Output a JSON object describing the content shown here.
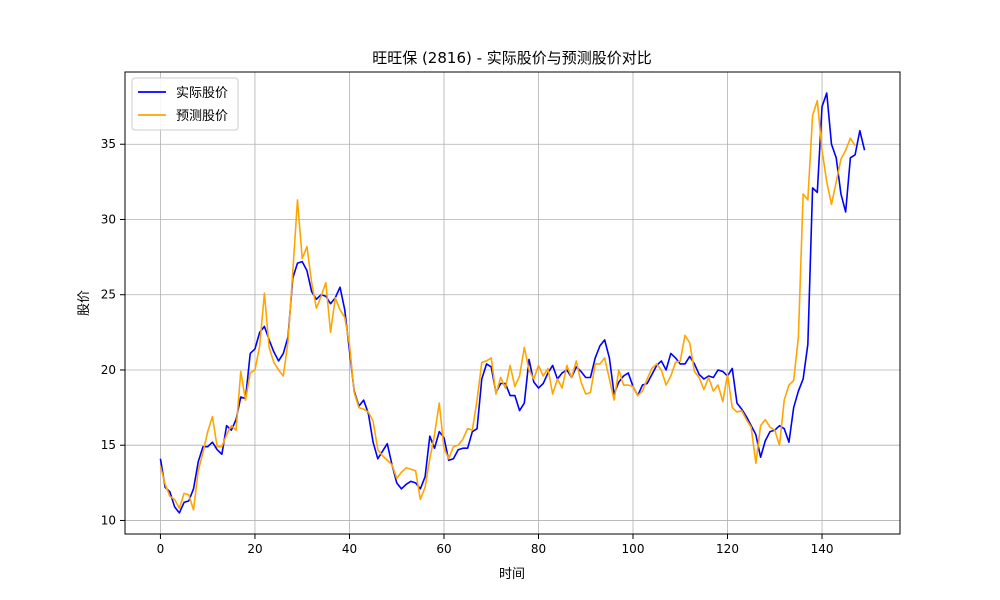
{
  "chart_data": {
    "type": "line",
    "title": "旺旺保 (2816) - 实际股价与预测股价对比",
    "xlabel": "时间",
    "ylabel": "股价",
    "xlim": [
      -7.5,
      156.5
    ],
    "ylim": [
      9.1,
      39.8
    ],
    "xticks": [
      0,
      20,
      40,
      60,
      80,
      100,
      120,
      140
    ],
    "yticks": [
      10,
      15,
      20,
      25,
      30,
      35
    ],
    "grid": true,
    "legend_position": "top-left",
    "series": [
      {
        "name": "实际股价",
        "color": "#0000ff",
        "values": [
          14.1,
          12.2,
          11.9,
          10.9,
          10.5,
          11.2,
          11.3,
          12.1,
          13.9,
          14.9,
          14.9,
          15.2,
          14.7,
          14.4,
          16.3,
          16.0,
          16.7,
          18.2,
          18.1,
          21.1,
          21.4,
          22.5,
          22.9,
          22.0,
          21.2,
          20.6,
          21.1,
          22.2,
          26.1,
          27.1,
          27.2,
          26.6,
          25.2,
          24.7,
          25.0,
          24.9,
          24.4,
          24.8,
          25.5,
          24.0,
          21.3,
          18.6,
          17.6,
          18.0,
          17.1,
          15.2,
          14.1,
          14.6,
          15.1,
          13.7,
          12.5,
          12.1,
          12.4,
          12.6,
          12.5,
          12.1,
          12.9,
          15.6,
          14.8,
          15.9,
          15.5,
          14.0,
          14.1,
          14.7,
          14.8,
          14.8,
          15.9,
          16.1,
          19.4,
          20.4,
          20.2,
          18.5,
          19.1,
          19.1,
          18.3,
          18.3,
          17.3,
          17.8,
          20.7,
          19.2,
          18.8,
          19.1,
          19.8,
          20.3,
          19.4,
          19.8,
          20.0,
          19.5,
          20.2,
          19.9,
          19.5,
          19.5,
          20.8,
          21.6,
          22.0,
          20.8,
          18.4,
          19.2,
          19.6,
          19.8,
          18.9,
          18.3,
          19.0,
          19.1,
          19.7,
          20.3,
          20.6,
          20.0,
          21.1,
          20.8,
          20.4,
          20.4,
          20.9,
          20.4,
          19.7,
          19.4,
          19.6,
          19.5,
          20.0,
          19.9,
          19.6,
          20.1,
          17.8,
          17.4,
          16.9,
          16.3,
          15.7,
          14.2,
          15.3,
          15.9,
          16.0,
          16.3,
          16.1,
          15.2,
          17.5,
          18.6,
          19.4,
          21.7,
          32.1,
          31.8,
          37.5,
          38.4,
          35.0,
          34.1,
          31.7,
          30.5,
          34.1,
          34.3,
          35.9,
          34.6
        ]
      },
      {
        "name": "预测股价",
        "color": "#ffa500",
        "values": [
          13.6,
          12.4,
          11.6,
          11.4,
          10.8,
          11.8,
          11.7,
          10.7,
          13.3,
          14.5,
          15.9,
          16.9,
          14.9,
          14.9,
          15.7,
          16.3,
          16.0,
          19.9,
          18.0,
          19.8,
          20.0,
          21.6,
          25.1,
          21.5,
          20.5,
          20.0,
          19.6,
          21.9,
          26.5,
          31.3,
          27.4,
          28.2,
          25.8,
          24.1,
          24.9,
          25.8,
          22.5,
          24.8,
          24.0,
          23.5,
          21.7,
          18.5,
          17.5,
          17.4,
          17.2,
          16.6,
          14.7,
          14.3,
          14.0,
          13.7,
          12.8,
          13.2,
          13.5,
          13.4,
          13.3,
          11.4,
          12.2,
          14.1,
          15.7,
          17.8,
          14.8,
          14.1,
          14.9,
          15.0,
          15.4,
          16.1,
          16.0,
          18.0,
          20.5,
          20.6,
          20.8,
          18.4,
          19.5,
          18.8,
          20.3,
          18.9,
          19.6,
          21.5,
          20.0,
          19.4,
          20.3,
          19.6,
          20.1,
          18.4,
          19.4,
          18.8,
          20.3,
          19.5,
          20.6,
          19.2,
          18.4,
          18.5,
          20.4,
          20.4,
          20.8,
          19.4,
          18.0,
          20.0,
          19.0,
          19.0,
          18.9,
          18.3,
          18.6,
          19.4,
          20.1,
          20.4,
          20.0,
          19.0,
          19.6,
          20.5,
          20.6,
          22.3,
          21.8,
          19.9,
          19.5,
          18.7,
          19.5,
          18.6,
          19.0,
          17.9,
          19.7,
          17.5,
          17.2,
          17.3,
          16.7,
          16.2,
          13.8,
          16.3,
          16.7,
          16.2,
          16.0,
          15.0,
          18.0,
          19.0,
          19.3,
          22.2,
          31.7,
          31.3,
          36.9,
          37.9,
          34.6,
          32.5,
          31.0,
          32.5,
          34.0,
          34.6,
          35.4,
          34.9
        ]
      }
    ]
  }
}
